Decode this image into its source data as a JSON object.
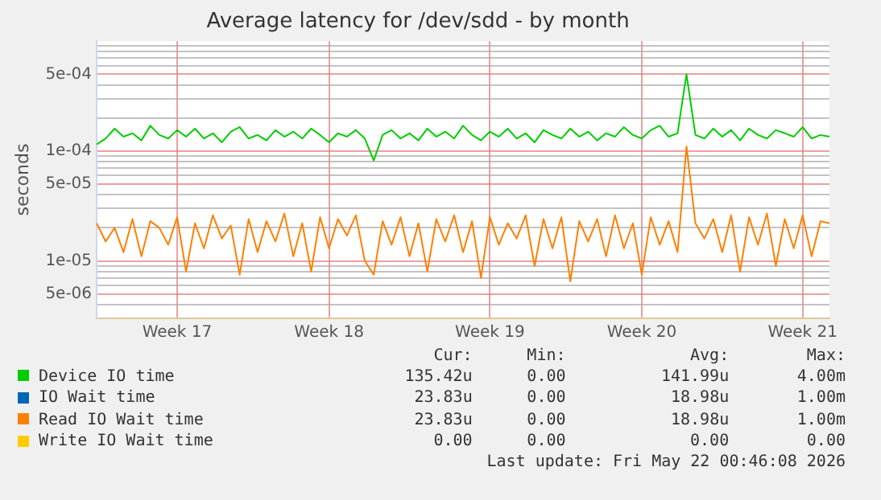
{
  "chart_data": {
    "type": "line",
    "title": "Average latency for /dev/sdd - by month",
    "ylabel": "seconds",
    "log": "y",
    "grid": true,
    "legend": "bottom",
    "marker": "none",
    "line_style": "solid",
    "categories": [
      null,
      null,
      null,
      null,
      null,
      null,
      null,
      null,
      null,
      "Week 17",
      null,
      null,
      null,
      null,
      null,
      null,
      null,
      null,
      null,
      null,
      null,
      null,
      null,
      null,
      null,
      null,
      "Week 18",
      null,
      null,
      null,
      null,
      null,
      null,
      null,
      null,
      null,
      null,
      null,
      null,
      null,
      null,
      null,
      null,
      null,
      "Week 19",
      null,
      null,
      null,
      null,
      null,
      null,
      null,
      null,
      null,
      null,
      null,
      null,
      null,
      null,
      null,
      null,
      "Week 20",
      null,
      null,
      null,
      null,
      null,
      null,
      null,
      null,
      null,
      null,
      null,
      null,
      null,
      null,
      null,
      null,
      null,
      "Week 21",
      null,
      null,
      null
    ],
    "ylim": [
      3e-06,
      0.001
    ],
    "yticks": [
      {
        "value": 4e-06,
        "label": null
      },
      {
        "value": 5e-06,
        "label": "5e-06"
      },
      {
        "value": 6e-06,
        "label": null
      },
      {
        "value": 7e-06,
        "label": null
      },
      {
        "value": 8e-06,
        "label": null
      },
      {
        "value": 9e-06,
        "label": null
      },
      {
        "value": 1e-05,
        "label": "1e-05"
      },
      {
        "value": 2e-05,
        "label": null
      },
      {
        "value": 3e-05,
        "label": null
      },
      {
        "value": 4e-05,
        "label": null
      },
      {
        "value": 5e-05,
        "label": "5e-05"
      },
      {
        "value": 6e-05,
        "label": null
      },
      {
        "value": 7e-05,
        "label": null
      },
      {
        "value": 8e-05,
        "label": null
      },
      {
        "value": 9e-05,
        "label": null
      },
      {
        "value": 0.0001,
        "label": "1e-04"
      },
      {
        "value": 0.0002,
        "label": null
      },
      {
        "value": 0.0003,
        "label": null
      },
      {
        "value": 0.0004,
        "label": null
      },
      {
        "value": 0.0005,
        "label": "5e-04"
      },
      {
        "value": 0.0006,
        "label": null
      },
      {
        "value": 0.0007,
        "label": null
      },
      {
        "value": 0.0008,
        "label": null
      },
      {
        "value": 0.0009,
        "label": null
      }
    ],
    "series": [
      {
        "name": "Device IO time",
        "color": "#00cc00",
        "values": [
          0.000115,
          0.00013,
          0.00016,
          0.000135,
          0.000145,
          0.000125,
          0.00017,
          0.00014,
          0.00013,
          0.000155,
          0.000135,
          0.00016,
          0.00013,
          0.000145,
          0.00012,
          0.00015,
          0.000165,
          0.00013,
          0.00014,
          0.000125,
          0.000155,
          0.000135,
          0.00015,
          0.00013,
          0.00016,
          0.00014,
          0.00012,
          0.000145,
          0.000135,
          0.000155,
          0.00013,
          8.2e-05,
          0.00014,
          0.000155,
          0.00013,
          0.000145,
          0.000125,
          0.00016,
          0.000135,
          0.00015,
          0.00013,
          0.00017,
          0.00014,
          0.000125,
          0.00015,
          0.000135,
          0.00016,
          0.00013,
          0.000145,
          0.00012,
          0.000155,
          0.00014,
          0.00013,
          0.00016,
          0.000135,
          0.00015,
          0.000125,
          0.000145,
          0.000135,
          0.000165,
          0.00014,
          0.00013,
          0.000155,
          0.00017,
          0.000135,
          0.000145,
          0.0005,
          0.00014,
          0.00013,
          0.00016,
          0.000135,
          0.000155,
          0.000125,
          0.00016,
          0.00014,
          0.00013,
          0.000155,
          0.000145,
          0.000135,
          0.000165,
          0.00013,
          0.00014,
          0.000135
        ]
      },
      {
        "name": "IO Wait time",
        "color": "#0066b3",
        "values": [
          null,
          null,
          null,
          null,
          null,
          null,
          null,
          null,
          null,
          null,
          null,
          null,
          null,
          null,
          null,
          null,
          null,
          null,
          null,
          null,
          null,
          null,
          null,
          null,
          null,
          null,
          null,
          null,
          null,
          null,
          null,
          null,
          null,
          null,
          null,
          null,
          null,
          null,
          null,
          null,
          null,
          null,
          null,
          null,
          null,
          null,
          null,
          null,
          null,
          null,
          null,
          null,
          null,
          null,
          null,
          null,
          null,
          null,
          null,
          null,
          null,
          null,
          null,
          null,
          null,
          null,
          null,
          null,
          null,
          null,
          null,
          null,
          null,
          null,
          null,
          null,
          null,
          null,
          null,
          null,
          null,
          null,
          null
        ]
      },
      {
        "name": "Read IO Wait time",
        "color": "#ff8000",
        "values": [
          2.2e-05,
          1.5e-05,
          2e-05,
          1.2e-05,
          2.4e-05,
          1.1e-05,
          2.3e-05,
          2e-05,
          1.4e-05,
          2.5e-05,
          8e-06,
          2.2e-05,
          1.3e-05,
          2.6e-05,
          1.6e-05,
          2.1e-05,
          7.5e-06,
          2.4e-05,
          1.2e-05,
          2.3e-05,
          1.5e-05,
          2.7e-05,
          1.1e-05,
          2.2e-05,
          8e-06,
          2.5e-05,
          1.3e-05,
          2.4e-05,
          1.7e-05,
          2.6e-05,
          1e-05,
          7.5e-06,
          2.3e-05,
          1.4e-05,
          2.5e-05,
          1.1e-05,
          2.2e-05,
          8e-06,
          2.4e-05,
          1.5e-05,
          2.6e-05,
          1.2e-05,
          2.3e-05,
          7e-06,
          2.5e-05,
          1.4e-05,
          2.2e-05,
          1.6e-05,
          2.6e-05,
          9e-06,
          2.4e-05,
          1.3e-05,
          2.5e-05,
          6.5e-06,
          2.3e-05,
          1.5e-05,
          2.4e-05,
          1.1e-05,
          2.6e-05,
          1.3e-05,
          2.2e-05,
          7.5e-06,
          2.5e-05,
          1.4e-05,
          2.3e-05,
          1.2e-05,
          0.00011,
          2.2e-05,
          1.6e-05,
          2.4e-05,
          1.2e-05,
          2.6e-05,
          8e-06,
          2.5e-05,
          1.4e-05,
          2.7e-05,
          9e-06,
          2.4e-05,
          1.3e-05,
          2.6e-05,
          1.1e-05,
          2.3e-05,
          2.2e-05
        ]
      },
      {
        "name": "Write IO Wait time",
        "color": "#ffcc00",
        "values": [
          null,
          null,
          null,
          null,
          null,
          null,
          null,
          null,
          null,
          null,
          null,
          null,
          null,
          null,
          null,
          null,
          null,
          null,
          null,
          null,
          null,
          null,
          null,
          null,
          null,
          null,
          null,
          null,
          null,
          null,
          null,
          null,
          null,
          null,
          null,
          null,
          null,
          null,
          null,
          null,
          null,
          null,
          null,
          null,
          null,
          null,
          null,
          null,
          null,
          null,
          null,
          null,
          null,
          null,
          null,
          null,
          null,
          null,
          null,
          null,
          null,
          null,
          null,
          null,
          null,
          null,
          null,
          null,
          null,
          null,
          null,
          null,
          null,
          null,
          null,
          null,
          null,
          null,
          null,
          null,
          null,
          null,
          null
        ]
      }
    ],
    "annotations": [
      "Cur:",
      "Min:",
      "Avg:",
      "Max:",
      "135.42u",
      "0.00",
      "141.99u",
      "4.00m",
      "23.83u",
      "0.00",
      "18.98u",
      "1.00m",
      "23.83u",
      "0.00",
      "18.98u",
      "1.00m",
      "0.00",
      "0.00",
      "0.00",
      "0.00",
      "Last update: Fri May 22 00:46:08 2026"
    ]
  }
}
